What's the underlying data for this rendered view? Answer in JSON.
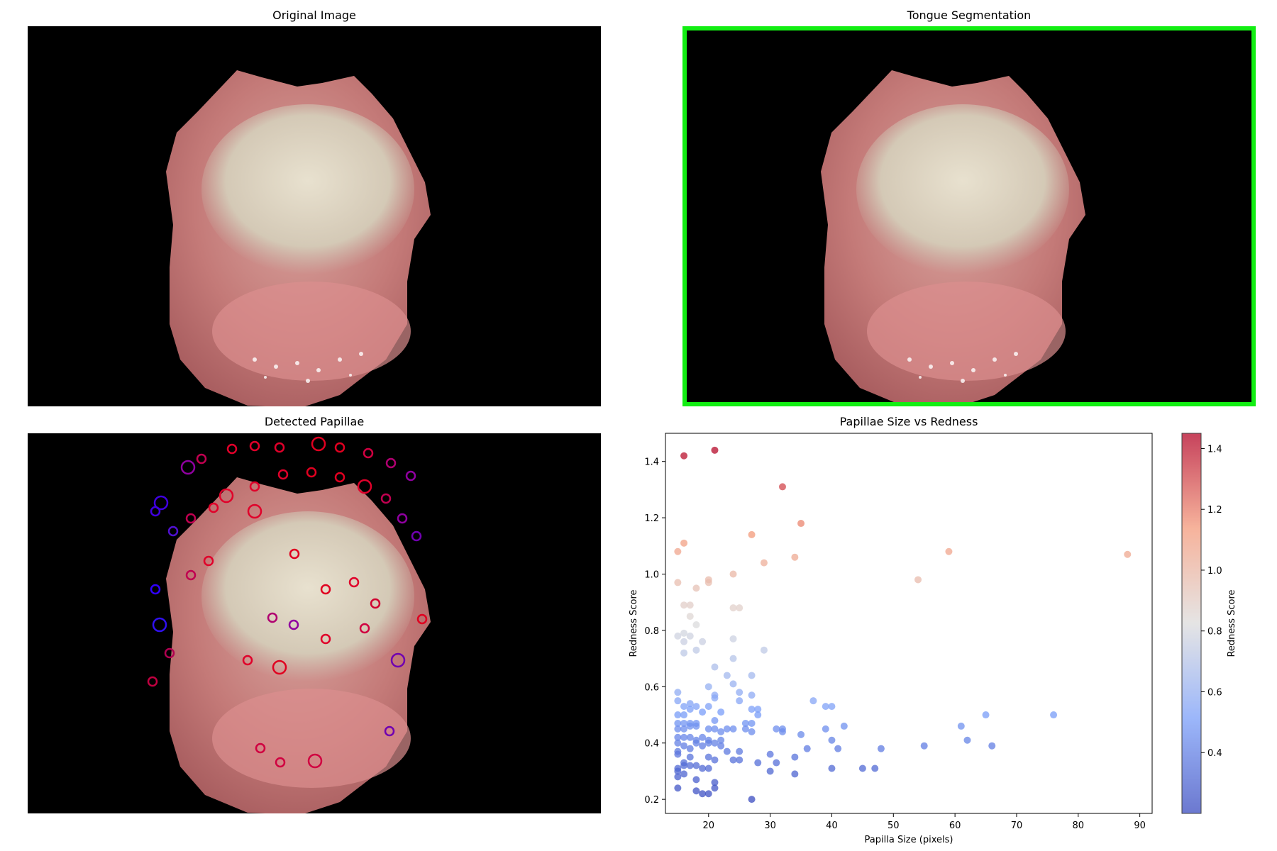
{
  "panels": {
    "original": {
      "title": "Original Image"
    },
    "segmentation": {
      "title": "Tongue Segmentation",
      "outline_color": "#12ee12"
    },
    "papillae": {
      "title": "Detected Papillae"
    },
    "scatter": {
      "title": "Papillae Size vs Redness"
    }
  },
  "chart_data": {
    "type": "scatter",
    "title": "Papillae Size vs Redness",
    "xlabel": "Papilla Size (pixels)",
    "ylabel": "Redness Score",
    "xlim": [
      13,
      92
    ],
    "ylim": [
      0.15,
      1.5
    ],
    "xticks": [
      20,
      30,
      40,
      50,
      60,
      70,
      80,
      90
    ],
    "yticks": [
      0.2,
      0.4,
      0.6,
      0.8,
      1.0,
      1.2,
      1.4
    ],
    "colorbar": {
      "label": "Redness Score",
      "min": 0.2,
      "max": 1.45,
      "ticks": [
        0.4,
        0.6,
        0.8,
        1.0,
        1.2,
        1.4
      ],
      "colormap": "coolwarm"
    },
    "points": [
      [
        16,
        1.42
      ],
      [
        21,
        1.44
      ],
      [
        32,
        1.31
      ],
      [
        35,
        1.18
      ],
      [
        27,
        1.14
      ],
      [
        16,
        1.11
      ],
      [
        15,
        1.08
      ],
      [
        59,
        1.08
      ],
      [
        88,
        1.07
      ],
      [
        34,
        1.06
      ],
      [
        29,
        1.04
      ],
      [
        24,
        1.0
      ],
      [
        54,
        0.98
      ],
      [
        15,
        0.97
      ],
      [
        20,
        0.97
      ],
      [
        20,
        0.98
      ],
      [
        18,
        0.95
      ],
      [
        16,
        0.89
      ],
      [
        17,
        0.89
      ],
      [
        24,
        0.88
      ],
      [
        25,
        0.88
      ],
      [
        17,
        0.85
      ],
      [
        18,
        0.82
      ],
      [
        15,
        0.78
      ],
      [
        16,
        0.79
      ],
      [
        17,
        0.78
      ],
      [
        16,
        0.76
      ],
      [
        19,
        0.76
      ],
      [
        24,
        0.77
      ],
      [
        16,
        0.72
      ],
      [
        18,
        0.73
      ],
      [
        29,
        0.73
      ],
      [
        24,
        0.7
      ],
      [
        21,
        0.67
      ],
      [
        23,
        0.64
      ],
      [
        27,
        0.64
      ],
      [
        24,
        0.61
      ],
      [
        20,
        0.6
      ],
      [
        15,
        0.58
      ],
      [
        15,
        0.55
      ],
      [
        21,
        0.57
      ],
      [
        21,
        0.56
      ],
      [
        25,
        0.58
      ],
      [
        25,
        0.55
      ],
      [
        27,
        0.57
      ],
      [
        37,
        0.55
      ],
      [
        16,
        0.53
      ],
      [
        17,
        0.54
      ],
      [
        18,
        0.53
      ],
      [
        20,
        0.53
      ],
      [
        15,
        0.5
      ],
      [
        16,
        0.5
      ],
      [
        17,
        0.52
      ],
      [
        19,
        0.51
      ],
      [
        22,
        0.51
      ],
      [
        27,
        0.52
      ],
      [
        28,
        0.52
      ],
      [
        28,
        0.5
      ],
      [
        39,
        0.53
      ],
      [
        40,
        0.53
      ],
      [
        65,
        0.5
      ],
      [
        76,
        0.5
      ],
      [
        15,
        0.47
      ],
      [
        16,
        0.47
      ],
      [
        17,
        0.47
      ],
      [
        18,
        0.47
      ],
      [
        21,
        0.48
      ],
      [
        26,
        0.47
      ],
      [
        27,
        0.47
      ],
      [
        42,
        0.46
      ],
      [
        61,
        0.46
      ],
      [
        15,
        0.45
      ],
      [
        16,
        0.45
      ],
      [
        17,
        0.46
      ],
      [
        18,
        0.46
      ],
      [
        20,
        0.45
      ],
      [
        21,
        0.45
      ],
      [
        22,
        0.44
      ],
      [
        23,
        0.45
      ],
      [
        24,
        0.45
      ],
      [
        26,
        0.45
      ],
      [
        27,
        0.44
      ],
      [
        31,
        0.45
      ],
      [
        32,
        0.45
      ],
      [
        32,
        0.44
      ],
      [
        35,
        0.43
      ],
      [
        39,
        0.45
      ],
      [
        15,
        0.42
      ],
      [
        16,
        0.42
      ],
      [
        17,
        0.42
      ],
      [
        18,
        0.41
      ],
      [
        19,
        0.42
      ],
      [
        20,
        0.41
      ],
      [
        21,
        0.4
      ],
      [
        22,
        0.41
      ],
      [
        40,
        0.41
      ],
      [
        62,
        0.41
      ],
      [
        15,
        0.4
      ],
      [
        16,
        0.39
      ],
      [
        17,
        0.38
      ],
      [
        18,
        0.4
      ],
      [
        19,
        0.39
      ],
      [
        20,
        0.4
      ],
      [
        22,
        0.39
      ],
      [
        23,
        0.37
      ],
      [
        25,
        0.37
      ],
      [
        41,
        0.38
      ],
      [
        48,
        0.38
      ],
      [
        55,
        0.39
      ],
      [
        66,
        0.39
      ],
      [
        36,
        0.38
      ],
      [
        15,
        0.37
      ],
      [
        15,
        0.36
      ],
      [
        17,
        0.35
      ],
      [
        20,
        0.35
      ],
      [
        21,
        0.34
      ],
      [
        24,
        0.34
      ],
      [
        25,
        0.34
      ],
      [
        28,
        0.33
      ],
      [
        30,
        0.36
      ],
      [
        31,
        0.33
      ],
      [
        34,
        0.35
      ],
      [
        16,
        0.33
      ],
      [
        16,
        0.32
      ],
      [
        17,
        0.32
      ],
      [
        18,
        0.32
      ],
      [
        19,
        0.31
      ],
      [
        15,
        0.31
      ],
      [
        15,
        0.3
      ],
      [
        16,
        0.29
      ],
      [
        20,
        0.31
      ],
      [
        30,
        0.3
      ],
      [
        34,
        0.29
      ],
      [
        40,
        0.31
      ],
      [
        45,
        0.31
      ],
      [
        47,
        0.31
      ],
      [
        15,
        0.28
      ],
      [
        18,
        0.27
      ],
      [
        21,
        0.26
      ],
      [
        15,
        0.24
      ],
      [
        21,
        0.24
      ],
      [
        18,
        0.23
      ],
      [
        19,
        0.22
      ],
      [
        20,
        0.22
      ],
      [
        27,
        0.2
      ]
    ]
  }
}
